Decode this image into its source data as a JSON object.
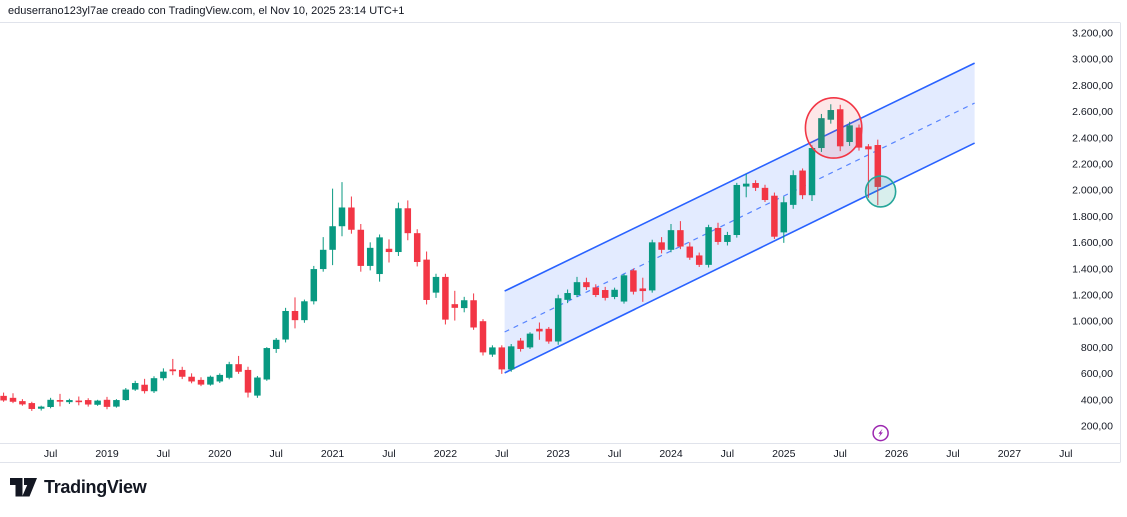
{
  "attribution": "eduserrano123yl7ae creado con TradingView.com, el Nov 10, 2025 23:14 UTC+1",
  "watermark_logo": {
    "brand": "TradingView"
  },
  "colors": {
    "up": "#089981",
    "down": "#f23645",
    "text": "#131722",
    "border": "#e0e3eb",
    "channel_line": "#2962ff",
    "channel_fill": "rgba(41,98,255,0.13)",
    "ellipse_red_stroke": "#f23645",
    "ellipse_red_fill": "rgba(242,54,69,0.12)",
    "ellipse_teal_stroke": "#26a69a",
    "ellipse_teal_fill": "rgba(38,166,154,0.18)",
    "marker_purple": "#9c27b0"
  },
  "chart_data": {
    "type": "candlestick",
    "timeframe": "monthly",
    "y_axis": {
      "min": 200,
      "max": 3200,
      "step": 200,
      "tick_labels": [
        "3.200,00",
        "3.000,00",
        "2.800,00",
        "2.600,00",
        "2.400,00",
        "2.200,00",
        "2.000,00",
        "1.800,00",
        "1.600,00",
        "1.400,00",
        "1.200,00",
        "1.000,00",
        "800,00",
        "600,00",
        "400,00",
        "200,00"
      ]
    },
    "x_axis": {
      "tick_labels": [
        {
          "text": "Jul",
          "m": -6
        },
        {
          "text": "2019",
          "m": 0
        },
        {
          "text": "Jul",
          "m": 6
        },
        {
          "text": "2020",
          "m": 12
        },
        {
          "text": "Jul",
          "m": 18
        },
        {
          "text": "2021",
          "m": 24
        },
        {
          "text": "Jul",
          "m": 30
        },
        {
          "text": "2022",
          "m": 36
        },
        {
          "text": "Jul",
          "m": 42
        },
        {
          "text": "2023",
          "m": 48
        },
        {
          "text": "Jul",
          "m": 54
        },
        {
          "text": "2024",
          "m": 60
        },
        {
          "text": "Jul",
          "m": 66
        },
        {
          "text": "2025",
          "m": 72
        },
        {
          "text": "Jul",
          "m": 78
        },
        {
          "text": "2026",
          "m": 84
        },
        {
          "text": "Jul",
          "m": 90
        },
        {
          "text": "2027",
          "m": 96
        },
        {
          "text": "Jul",
          "m": 102
        }
      ]
    },
    "candles": [
      [
        "2018-02",
        430,
        455,
        385,
        395
      ],
      [
        "2018-03",
        415,
        450,
        375,
        385
      ],
      [
        "2018-04",
        390,
        405,
        355,
        365
      ],
      [
        "2018-05",
        375,
        385,
        315,
        330
      ],
      [
        "2018-06",
        332,
        355,
        318,
        348
      ],
      [
        "2018-07",
        345,
        415,
        335,
        400
      ],
      [
        "2018-08",
        398,
        445,
        350,
        388
      ],
      [
        "2018-09",
        382,
        408,
        368,
        398
      ],
      [
        "2018-10",
        394,
        425,
        358,
        386
      ],
      [
        "2018-11",
        398,
        412,
        348,
        364
      ],
      [
        "2018-12",
        362,
        400,
        354,
        394
      ],
      [
        "2019-01",
        400,
        422,
        328,
        346
      ],
      [
        "2019-02",
        348,
        405,
        340,
        398
      ],
      [
        "2019-03",
        398,
        490,
        392,
        478
      ],
      [
        "2019-04",
        478,
        545,
        468,
        528
      ],
      [
        "2019-05",
        515,
        560,
        448,
        466
      ],
      [
        "2019-06",
        465,
        580,
        452,
        565
      ],
      [
        "2019-07",
        565,
        640,
        548,
        615
      ],
      [
        "2019-08",
        632,
        712,
        588,
        618
      ],
      [
        "2019-09",
        628,
        652,
        558,
        576
      ],
      [
        "2019-10",
        576,
        602,
        526,
        540
      ],
      [
        "2019-11",
        552,
        572,
        504,
        516
      ],
      [
        "2019-12",
        516,
        585,
        508,
        576
      ],
      [
        "2020-01",
        540,
        602,
        528,
        590
      ],
      [
        "2020-02",
        568,
        690,
        556,
        672
      ],
      [
        "2020-03",
        672,
        735,
        598,
        614
      ],
      [
        "2020-04",
        628,
        652,
        418,
        455
      ],
      [
        "2020-05",
        432,
        582,
        415,
        570
      ],
      [
        "2020-06",
        555,
        802,
        545,
        795
      ],
      [
        "2020-07",
        788,
        872,
        758,
        858
      ],
      [
        "2020-08",
        860,
        1102,
        838,
        1078
      ],
      [
        "2020-09",
        1078,
        1182,
        945,
        1008
      ],
      [
        "2020-10",
        1008,
        1165,
        988,
        1152
      ],
      [
        "2020-11",
        1152,
        1422,
        1128,
        1398
      ],
      [
        "2020-12",
        1398,
        1642,
        1378,
        1545
      ],
      [
        "2021-01",
        1545,
        2012,
        1428,
        1725
      ],
      [
        "2021-02",
        1725,
        2062,
        1648,
        1868
      ],
      [
        "2021-03",
        1868,
        1952,
        1668,
        1698
      ],
      [
        "2021-04",
        1698,
        1742,
        1378,
        1422
      ],
      [
        "2021-05",
        1422,
        1602,
        1388,
        1560
      ],
      [
        "2021-06",
        1360,
        1662,
        1302,
        1640
      ],
      [
        "2021-07",
        1553,
        1625,
        1448,
        1528
      ],
      [
        "2021-08",
        1528,
        1905,
        1498,
        1862
      ],
      [
        "2021-09",
        1862,
        1922,
        1618,
        1672
      ],
      [
        "2021-10",
        1672,
        1702,
        1418,
        1452
      ],
      [
        "2021-11",
        1470,
        1532,
        1128,
        1162
      ],
      [
        "2021-12",
        1218,
        1362,
        1178,
        1338
      ],
      [
        "2022-01",
        1338,
        1362,
        975,
        1012
      ],
      [
        "2022-02",
        1130,
        1232,
        1005,
        1102
      ],
      [
        "2022-03",
        1100,
        1186,
        1068,
        1160
      ],
      [
        "2022-04",
        1160,
        1212,
        934,
        952
      ],
      [
        "2022-05",
        1000,
        1016,
        738,
        762
      ],
      [
        "2022-06",
        745,
        816,
        728,
        800
      ],
      [
        "2022-07",
        800,
        816,
        598,
        632
      ],
      [
        "2022-08",
        632,
        826,
        614,
        808
      ],
      [
        "2022-09",
        852,
        872,
        768,
        788
      ],
      [
        "2022-10",
        800,
        916,
        788,
        905
      ],
      [
        "2022-11",
        942,
        990,
        858,
        922
      ],
      [
        "2022-12",
        942,
        956,
        828,
        845
      ],
      [
        "2023-01",
        845,
        1202,
        820,
        1175
      ],
      [
        "2023-02",
        1163,
        1242,
        1138,
        1215
      ],
      [
        "2023-03",
        1200,
        1338,
        1185,
        1298
      ],
      [
        "2023-04",
        1298,
        1332,
        1238,
        1260
      ],
      [
        "2023-05",
        1258,
        1282,
        1184,
        1200
      ],
      [
        "2023-06",
        1238,
        1262,
        1158,
        1178
      ],
      [
        "2023-07",
        1185,
        1256,
        1168,
        1240
      ],
      [
        "2023-08",
        1150,
        1362,
        1134,
        1350
      ],
      [
        "2023-09",
        1388,
        1402,
        1204,
        1225
      ],
      [
        "2023-10",
        1250,
        1332,
        1148,
        1230
      ],
      [
        "2023-11",
        1235,
        1622,
        1218,
        1602
      ],
      [
        "2023-12",
        1602,
        1642,
        1518,
        1545
      ],
      [
        "2024-01",
        1545,
        1742,
        1526,
        1695
      ],
      [
        "2024-02",
        1695,
        1764,
        1550,
        1570
      ],
      [
        "2024-03",
        1570,
        1602,
        1468,
        1485
      ],
      [
        "2024-04",
        1502,
        1524,
        1414,
        1430
      ],
      [
        "2024-05",
        1430,
        1736,
        1410,
        1718
      ],
      [
        "2024-06",
        1712,
        1752,
        1584,
        1605
      ],
      [
        "2024-07",
        1605,
        1682,
        1578,
        1658
      ],
      [
        "2024-08",
        1658,
        2056,
        1638,
        2040
      ],
      [
        "2024-09",
        2028,
        2124,
        1946,
        2050
      ],
      [
        "2024-10",
        2055,
        2076,
        1994,
        2018
      ],
      [
        "2024-11",
        2018,
        2042,
        1910,
        1925
      ],
      [
        "2024-12",
        1958,
        1982,
        1628,
        1645
      ],
      [
        "2025-01",
        1678,
        1952,
        1598,
        1908
      ],
      [
        "2025-02",
        1888,
        2152,
        1858,
        2115
      ],
      [
        "2025-03",
        2150,
        2166,
        1932,
        1962
      ],
      [
        "2025-04",
        1962,
        2342,
        1918,
        2322
      ],
      [
        "2025-05",
        2322,
        2582,
        2292,
        2550
      ],
      [
        "2025-06",
        2538,
        2656,
        2508,
        2612
      ],
      [
        "2025-07",
        2618,
        2652,
        2298,
        2335
      ],
      [
        "2025-08",
        2368,
        2522,
        2338,
        2495
      ],
      [
        "2025-09",
        2478,
        2502,
        2302,
        2325
      ],
      [
        "2025-10",
        2335,
        2352,
        1942,
        2312
      ],
      [
        "2025-11",
        2345,
        2386,
        1886,
        2025
      ]
    ],
    "drawings": {
      "parallel_channel": {
        "from": {
          "m": 42.3,
          "price_top": 1230,
          "price_bottom": 605
        },
        "to": {
          "m": 92.3,
          "price_top": 2970,
          "price_bottom": 2360
        }
      },
      "ellipses": [
        {
          "id": "red-highlight",
          "m": 77.3,
          "price": 2475,
          "rx_m": 3.0,
          "ry_price": 230
        },
        {
          "id": "teal-highlight",
          "m": 82.3,
          "price": 1990,
          "rx_m": 1.6,
          "ry_price": 118
        }
      ],
      "flash_marker": {
        "m": 82.3,
        "price": 146
      }
    }
  }
}
